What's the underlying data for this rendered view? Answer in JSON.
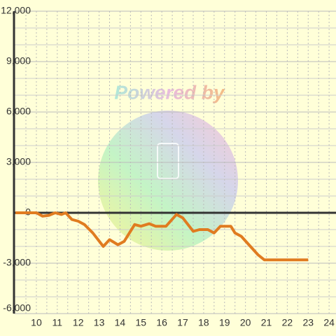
{
  "chart_data": {
    "type": "line",
    "watermark": "Powered by",
    "x": [
      9.0,
      10.0,
      10.3,
      10.6,
      10.9,
      11.2,
      11.4,
      11.7,
      12.0,
      12.3,
      12.7,
      13.2,
      13.5,
      13.9,
      14.2,
      14.7,
      15.0,
      15.4,
      15.7,
      16.2,
      16.7,
      17.0,
      17.5,
      17.8,
      18.2,
      18.5,
      18.8,
      19.3,
      19.5,
      19.8,
      20.6,
      20.9,
      21.5,
      23.0
    ],
    "series": [
      {
        "color": "#e07b20",
        "values": [
          0,
          0,
          -200,
          -150,
          0,
          -100,
          0,
          -400,
          -500,
          -700,
          -1200,
          -2000,
          -1600,
          -1900,
          -1700,
          -700,
          -800,
          -650,
          -800,
          -800,
          -100,
          -300,
          -1100,
          -1000,
          -1000,
          -1200,
          -800,
          -800,
          -1200,
          -1400,
          -2500,
          -2800,
          -2800,
          -2800
        ]
      }
    ],
    "xlim": [
      8.93,
      24.33
    ],
    "ylim": [
      -6000,
      12000
    ],
    "xticks": [
      10,
      11,
      12,
      13,
      14,
      15,
      16,
      17,
      18,
      19,
      20,
      21,
      22,
      23,
      24
    ],
    "yticks": [
      {
        "value": -6000,
        "label": "-6,000"
      },
      {
        "value": -3000,
        "label": "-3,000"
      },
      0,
      {
        "value": 3000,
        "label": "3,000"
      },
      {
        "value": 6000,
        "label": "6,000"
      },
      {
        "value": 9000,
        "label": "9,000"
      },
      {
        "value": 12000,
        "label": "12,000"
      }
    ],
    "yminor_ticks": [
      -5000,
      -4000,
      -2000,
      -1000,
      1000,
      2000,
      4000,
      5000,
      7000,
      8000,
      10000,
      11000
    ],
    "xminor_ticks": [
      9.5,
      10.5,
      11.5,
      12.5,
      13.5,
      14.5,
      15.5,
      16.5,
      17.5,
      18.5,
      19.5,
      20.5,
      21.5,
      22.5,
      23.5
    ],
    "grid": true
  }
}
